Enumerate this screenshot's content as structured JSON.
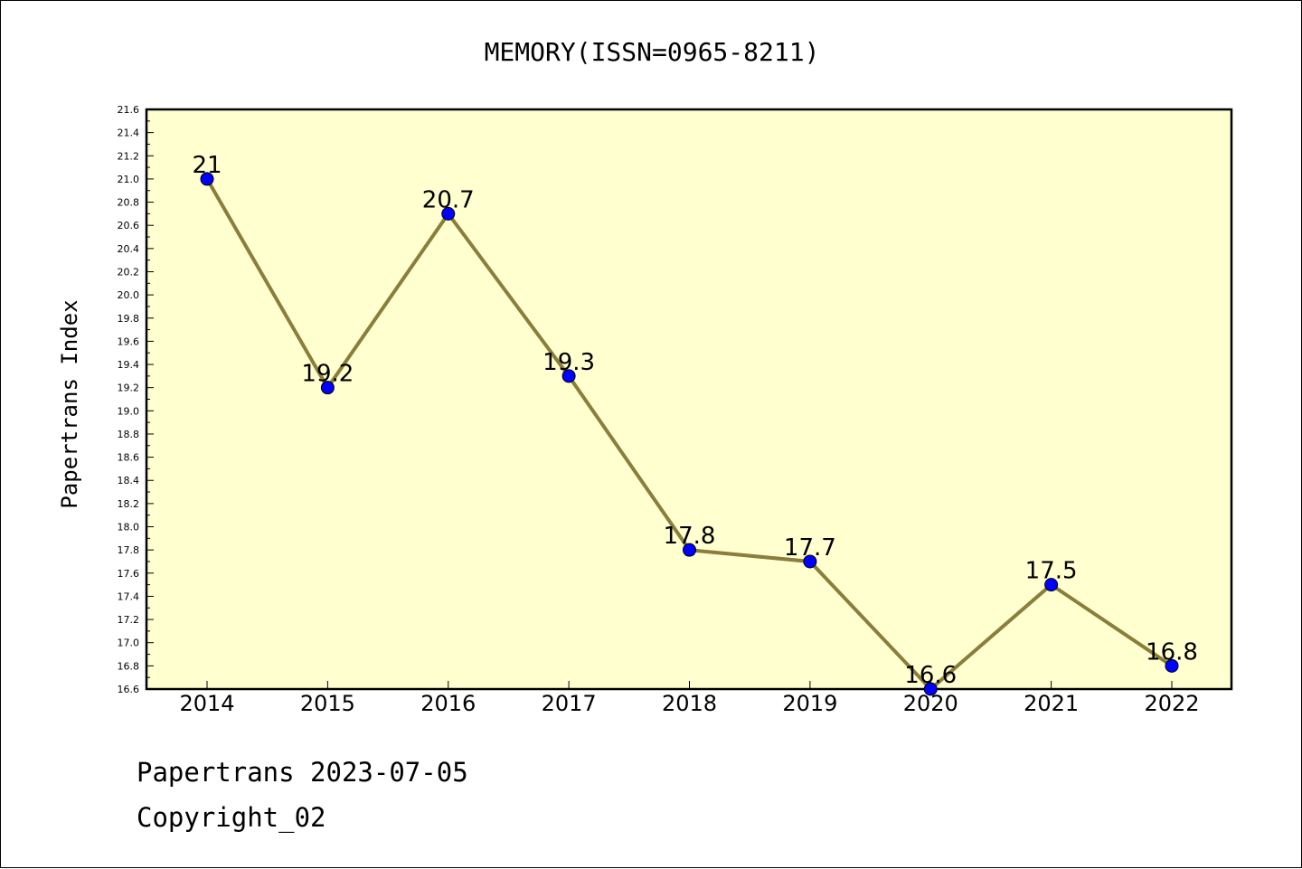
{
  "chart_data": {
    "type": "line",
    "title": "MEMORY(ISSN=0965-8211)",
    "xlabel": "",
    "ylabel": "Papertrans Index",
    "x": [
      "2014",
      "2015",
      "2016",
      "2017",
      "2018",
      "2019",
      "2020",
      "2021",
      "2022"
    ],
    "values": [
      21,
      19.2,
      20.7,
      19.3,
      17.8,
      17.7,
      16.6,
      17.5,
      16.8
    ],
    "data_labels": [
      "21",
      "19.2",
      "20.7",
      "19.3",
      "17.8",
      "17.7",
      "16.6",
      "17.5",
      "16.8"
    ],
    "ylim": [
      16.6,
      21.6
    ],
    "yticks": [
      "16.6",
      "16.8",
      "17.0",
      "17.2",
      "17.4",
      "17.6",
      "17.8",
      "18.0",
      "18.2",
      "18.4",
      "18.6",
      "18.8",
      "19.0",
      "19.2",
      "19.4",
      "19.6",
      "19.8",
      "20.0",
      "20.2",
      "20.4",
      "20.6",
      "20.8",
      "21.0",
      "21.2",
      "21.4",
      "21.6"
    ],
    "grid": false,
    "colors": {
      "plot_background": "#ffffd0",
      "line": "#8b7d3a",
      "marker": "#0000ff"
    }
  },
  "footer": {
    "line1": "Papertrans 2023-07-05",
    "line2": "Copyright_02"
  }
}
